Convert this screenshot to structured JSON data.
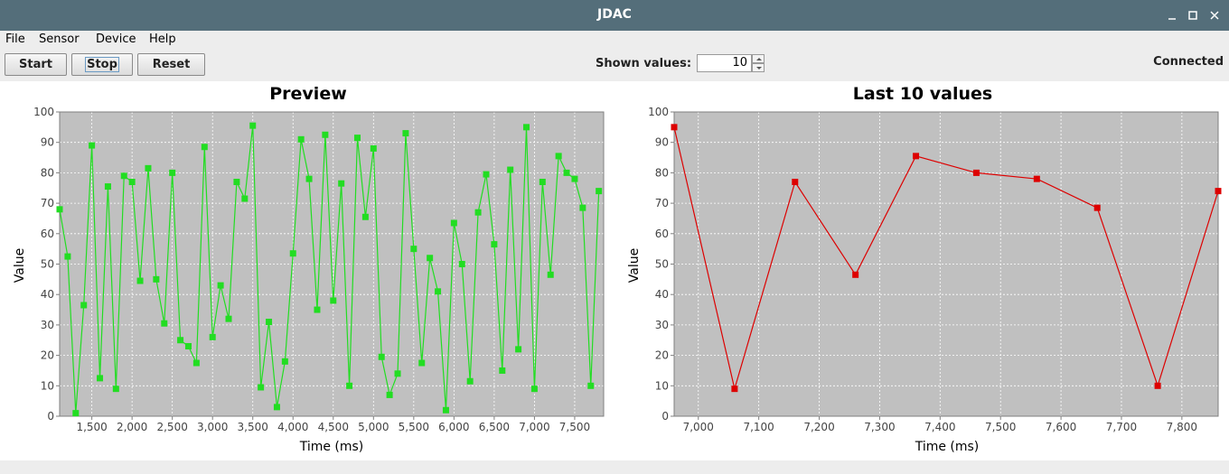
{
  "window": {
    "title": "JDAC"
  },
  "menu": [
    "File",
    "Sensor",
    "Device",
    "Help"
  ],
  "toolbar": {
    "start_label": "Start",
    "stop_label": "Stop",
    "reset_label": "Reset",
    "shown_values_label": "Shown values:",
    "shown_values": "10",
    "status": "Connected"
  },
  "colors": {
    "titlebar": "#546e7a",
    "plot_background": "#c0c0c0",
    "preview_series": "#22dd22",
    "last_series": "#dd0000"
  },
  "chart_data": [
    {
      "type": "line",
      "title": "Preview",
      "xlabel": "Time (ms)",
      "ylabel": "Value",
      "xlim": [
        1100,
        7860
      ],
      "ylim": [
        0,
        100
      ],
      "x_ticks": [
        1500,
        2000,
        2500,
        3000,
        3500,
        4000,
        4500,
        5000,
        5500,
        6000,
        6500,
        7000,
        7500
      ],
      "x_tick_labels": [
        "1,500",
        "2,000",
        "2,500",
        "3,000",
        "3,500",
        "4,000",
        "4,500",
        "5,000",
        "5,500",
        "6,000",
        "6,500",
        "7,000",
        "7,500"
      ],
      "y_ticks": [
        0,
        10,
        20,
        30,
        40,
        50,
        60,
        70,
        80,
        90,
        100
      ],
      "grid": true,
      "color": "#22dd22",
      "series": [
        {
          "x": [
            1100,
            1200,
            1300,
            1400,
            1500,
            1600,
            1700,
            1800,
            1900,
            2000,
            2100,
            2200,
            2300,
            2400,
            2500,
            2600,
            2700,
            2800,
            2900,
            3000,
            3100,
            3200,
            3300,
            3400,
            3500,
            3600,
            3700,
            3800,
            3900,
            4000,
            4100,
            4200,
            4300,
            4400,
            4500,
            4600,
            4700,
            4800,
            4900,
            5000,
            5100,
            5200,
            5300,
            5400,
            5500,
            5600,
            5700,
            5800,
            5900,
            6000,
            6100,
            6200,
            6300,
            6400,
            6500,
            6600,
            6700,
            6800,
            6900,
            7000,
            7100,
            7200,
            7300,
            7400,
            7500,
            7600,
            7700,
            7800
          ],
          "values": [
            68,
            52.5,
            1,
            36.5,
            89,
            12.5,
            75.5,
            9,
            79,
            77,
            44.5,
            81.5,
            45,
            30.5,
            80,
            25,
            23,
            17.5,
            88.5,
            26,
            43,
            32,
            77,
            71.5,
            95.5,
            9.5,
            31,
            3,
            18,
            53.5,
            91,
            78,
            35,
            92.5,
            38,
            76.5,
            10,
            91.5,
            65.5,
            88,
            19.5,
            7,
            14,
            93,
            55,
            17.5,
            52,
            41,
            2,
            63.5,
            50,
            11.5,
            67,
            79.5,
            56.5,
            15,
            81,
            22,
            95,
            9,
            77,
            46.5,
            85.5,
            80,
            78,
            68.5,
            10,
            74
          ]
        }
      ]
    },
    {
      "type": "line",
      "title": "Last 10 values",
      "xlabel": "Time (ms)",
      "ylabel": "Value",
      "xlim": [
        6960,
        7860
      ],
      "ylim": [
        0,
        100
      ],
      "x_ticks": [
        7000,
        7100,
        7200,
        7300,
        7400,
        7500,
        7600,
        7700,
        7800
      ],
      "x_tick_labels": [
        "7,000",
        "7,100",
        "7,200",
        "7,300",
        "7,400",
        "7,500",
        "7,600",
        "7,700",
        "7,800"
      ],
      "y_ticks": [
        0,
        10,
        20,
        30,
        40,
        50,
        60,
        70,
        80,
        90,
        100
      ],
      "grid": true,
      "color": "#dd0000",
      "series": [
        {
          "x": [
            6960,
            7060,
            7160,
            7260,
            7360,
            7460,
            7560,
            7660,
            7760,
            7860
          ],
          "values": [
            95,
            9,
            77,
            46.5,
            85.5,
            80,
            78,
            68.5,
            10,
            74
          ]
        }
      ]
    }
  ]
}
